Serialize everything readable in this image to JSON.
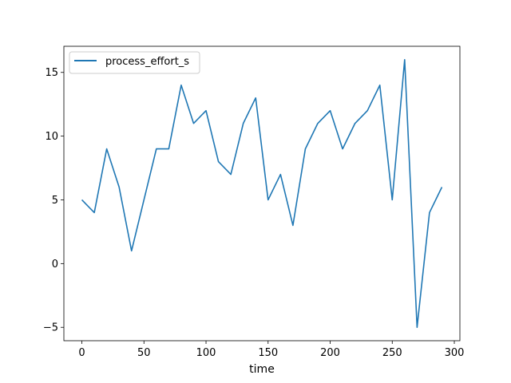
{
  "chart_data": {
    "type": "line",
    "title": "",
    "xlabel": "time",
    "ylabel": "",
    "xlim": [
      -14.5,
      304.5
    ],
    "ylim": [
      -6.05,
      17.05
    ],
    "xticks": [
      0,
      50,
      100,
      150,
      200,
      250,
      300
    ],
    "yticks": [
      -5,
      0,
      5,
      10,
      15
    ],
    "ytick_labels": [
      "−5",
      "0",
      "5",
      "10",
      "15"
    ],
    "grid": false,
    "legend_position": "upper-left",
    "x": [
      0,
      10,
      20,
      30,
      40,
      50,
      60,
      70,
      80,
      90,
      100,
      110,
      120,
      130,
      140,
      150,
      160,
      170,
      180,
      190,
      200,
      210,
      220,
      230,
      240,
      250,
      260,
      270,
      280,
      290
    ],
    "series": [
      {
        "name": "process_effort_s",
        "color": "#1f77b4",
        "values": [
          5,
          4,
          9,
          6,
          1,
          5,
          9,
          9,
          14,
          11,
          12,
          8,
          7,
          11,
          13,
          5,
          7,
          3,
          9,
          11,
          12,
          9,
          11,
          12,
          14,
          5,
          16,
          -5,
          4,
          6
        ]
      }
    ]
  }
}
